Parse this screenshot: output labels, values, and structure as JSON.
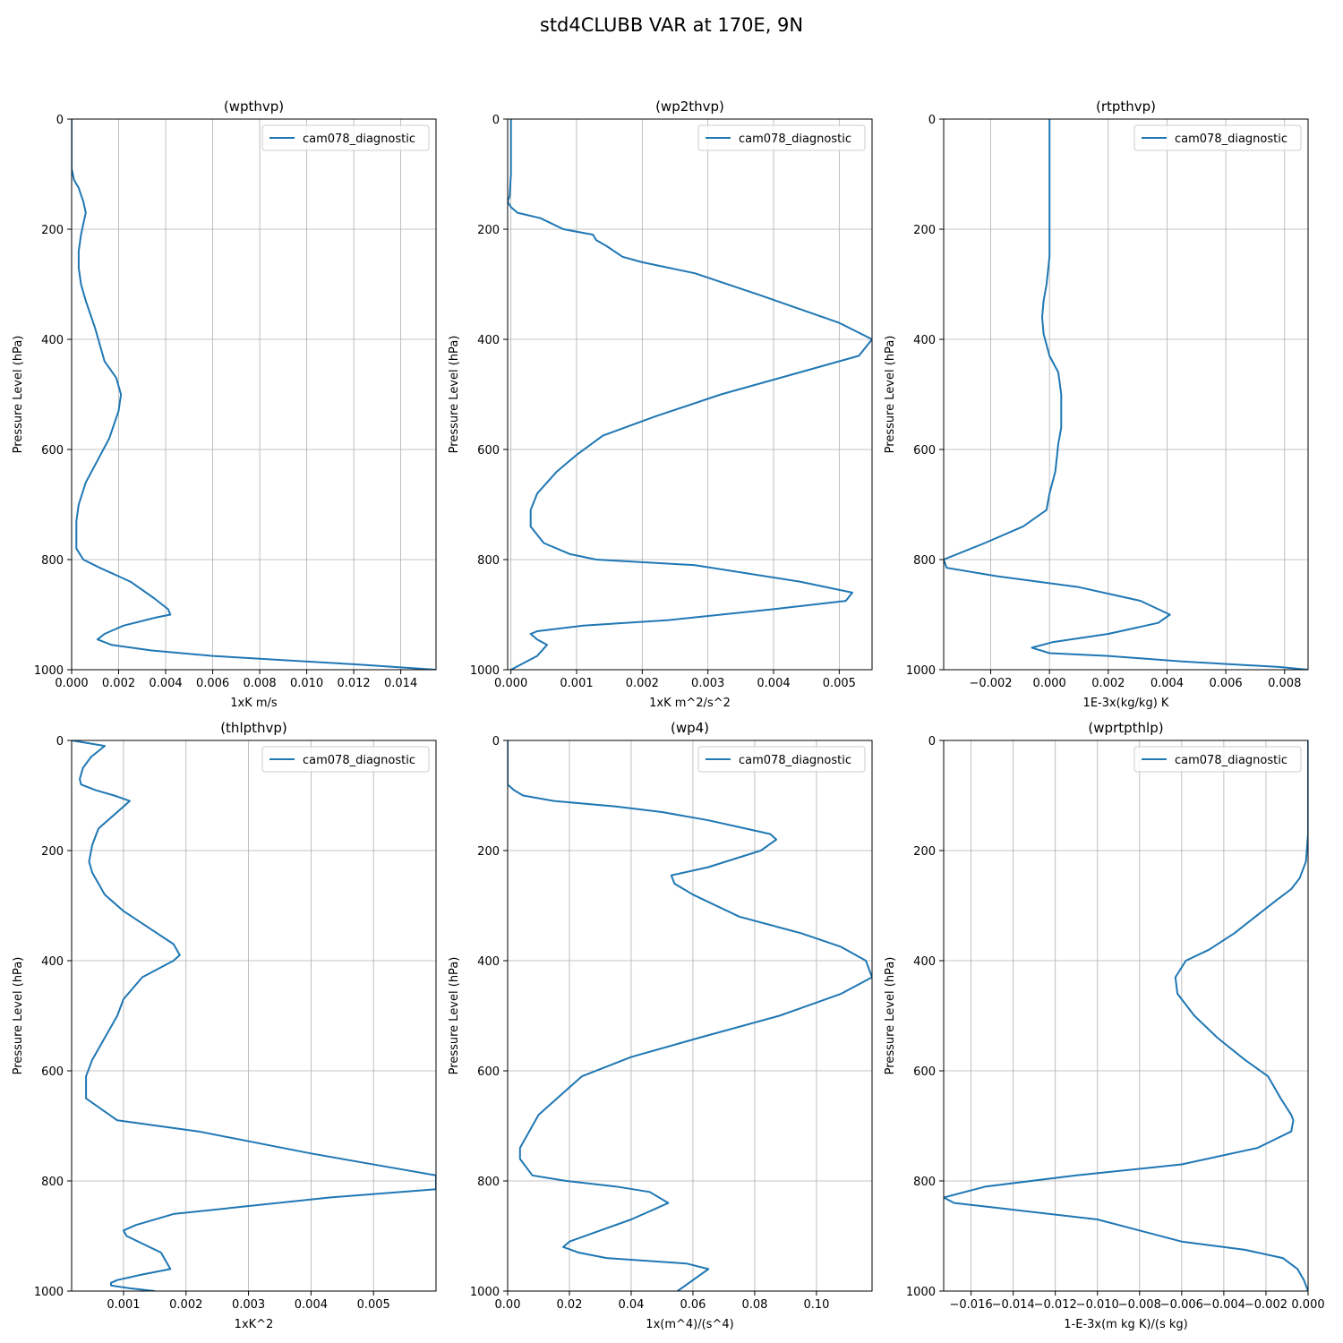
{
  "figure": {
    "title": "std4CLUBB VAR at 170E, 9N"
  },
  "chart_data": [
    {
      "type": "line",
      "title": "(wpthvp)",
      "xlabel": "1xK m/s",
      "ylabel": "Pressure Level (hPa)",
      "xlim": [
        0.0,
        0.0155
      ],
      "ylim": [
        1000,
        0
      ],
      "xticks": [
        0.0,
        0.002,
        0.004,
        0.006,
        0.008,
        0.01,
        0.012,
        0.014
      ],
      "xtick_labels": [
        "0.000",
        "0.002",
        "0.004",
        "0.006",
        "0.008",
        "0.010",
        "0.012",
        "0.014"
      ],
      "yticks": [
        0,
        200,
        400,
        600,
        800,
        1000
      ],
      "grid": true,
      "legend": "top-right",
      "series": [
        {
          "name": "cam078_diagnostic",
          "color": "#1f77b4",
          "x": [
            0.0,
            0.0,
            0.0,
            0.0001,
            0.0003,
            0.0005,
            0.0006,
            0.0005,
            0.0004,
            0.0003,
            0.0003,
            0.0004,
            0.0006,
            0.001,
            0.0014,
            0.0019,
            0.0021,
            0.002,
            0.0016,
            0.0011,
            0.0006,
            0.0003,
            0.0002,
            0.0002,
            0.0002,
            0.0005,
            0.0012,
            0.0025,
            0.0035,
            0.0041,
            0.0042,
            0.0036,
            0.0022,
            0.0014,
            0.0011,
            0.0017,
            0.0034,
            0.006,
            0.012,
            0.0155
          ],
          "y": [
            0,
            50,
            90,
            110,
            125,
            150,
            170,
            190,
            210,
            240,
            270,
            300,
            330,
            380,
            440,
            470,
            500,
            530,
            580,
            620,
            660,
            700,
            730,
            760,
            780,
            800,
            815,
            840,
            870,
            890,
            900,
            905,
            920,
            935,
            945,
            955,
            965,
            975,
            990,
            1000
          ]
        }
      ]
    },
    {
      "type": "line",
      "title": "(wp2thvp)",
      "xlabel": "1xK m^2/s^2",
      "ylabel": "Pressure Level (hPa)",
      "xlim": [
        -5e-05,
        0.0055
      ],
      "ylim": [
        1000,
        0
      ],
      "xticks": [
        0.0,
        0.001,
        0.002,
        0.003,
        0.004,
        0.005
      ],
      "xtick_labels": [
        "0.000",
        "0.001",
        "0.002",
        "0.003",
        "0.004",
        "0.005"
      ],
      "yticks": [
        0,
        200,
        400,
        600,
        800,
        1000
      ],
      "grid": true,
      "legend": "top-right",
      "series": [
        {
          "name": "cam078_diagnostic",
          "color": "#1f77b4",
          "x": [
            0.0,
            0.0,
            0.0,
            0.0,
            -2e-05,
            -5e-05,
            0.0,
            0.0001,
            0.00045,
            0.0008,
            0.00125,
            0.0013,
            0.00145,
            0.0017,
            0.002,
            0.0028,
            0.0038,
            0.005,
            0.0055,
            0.0053,
            0.0044,
            0.0032,
            0.0022,
            0.0014,
            0.001,
            0.0007,
            0.0004,
            0.0003,
            0.0003,
            0.0005,
            0.0009,
            0.0013,
            0.0028,
            0.0044,
            0.0052,
            0.0051,
            0.004,
            0.0024,
            0.0011,
            0.0004,
            0.0003,
            0.0004,
            0.00055,
            0.0004,
            0.0
          ],
          "y": [
            0,
            50,
            80,
            100,
            140,
            150,
            160,
            170,
            180,
            200,
            210,
            220,
            230,
            250,
            260,
            280,
            320,
            370,
            400,
            430,
            460,
            500,
            540,
            575,
            610,
            640,
            680,
            710,
            740,
            770,
            790,
            800,
            810,
            840,
            860,
            875,
            890,
            910,
            920,
            930,
            935,
            945,
            955,
            975,
            1000
          ]
        }
      ]
    },
    {
      "type": "line",
      "title": "(rtpthvp)",
      "xlabel": "1E-3x(kg/kg) K",
      "ylabel": "Pressure Level (hPa)",
      "xlim": [
        -0.0036,
        0.0088
      ],
      "ylim": [
        1000,
        0
      ],
      "xticks": [
        -0.002,
        0.0,
        0.002,
        0.004,
        0.006,
        0.008
      ],
      "xtick_labels": [
        "−0.002",
        "0.000",
        "0.002",
        "0.004",
        "0.006",
        "0.008"
      ],
      "yticks": [
        0,
        200,
        400,
        600,
        800,
        1000
      ],
      "grid": true,
      "legend": "top-right",
      "series": [
        {
          "name": "cam078_diagnostic",
          "color": "#1f77b4",
          "x": [
            0.0,
            0.0,
            0.0,
            0.0,
            0.0,
            -0.0001,
            -0.0002,
            -0.00025,
            -0.0002,
            0.0,
            0.0003,
            0.0004,
            0.0004,
            0.0003,
            0.0002,
            0.0,
            -0.0001,
            -0.0009,
            -0.0022,
            -0.0036,
            -0.0035,
            -0.0018,
            0.001,
            0.0031,
            0.0041,
            0.0037,
            0.002,
            0.0001,
            -0.0006,
            0.0,
            0.002,
            0.0045,
            0.0078,
            0.0088
          ],
          "y": [
            0,
            50,
            100,
            200,
            250,
            300,
            330,
            360,
            390,
            430,
            460,
            500,
            560,
            590,
            640,
            680,
            710,
            740,
            770,
            800,
            815,
            830,
            850,
            875,
            900,
            915,
            935,
            950,
            960,
            970,
            975,
            985,
            995,
            1000
          ]
        }
      ]
    },
    {
      "type": "line",
      "title": "(thlpthvp)",
      "xlabel": "1xK^2",
      "ylabel": "Pressure Level (hPa)",
      "xlim": [
        0.00017,
        0.006
      ],
      "ylim": [
        1000,
        0
      ],
      "xticks": [
        0.001,
        0.002,
        0.003,
        0.004,
        0.005
      ],
      "xtick_labels": [
        "0.001",
        "0.002",
        "0.003",
        "0.004",
        "0.005"
      ],
      "yticks": [
        0,
        200,
        400,
        600,
        800,
        1000
      ],
      "grid": true,
      "legend": "top-right",
      "series": [
        {
          "name": "cam078_diagnostic",
          "color": "#1f77b4",
          "x": [
            0.00017,
            0.0007,
            0.00048,
            0.00035,
            0.0003,
            0.00032,
            0.00055,
            0.00085,
            0.0011,
            0.0009,
            0.0006,
            0.0005,
            0.00045,
            0.0005,
            0.0006,
            0.0007,
            0.001,
            0.0014,
            0.0018,
            0.0019,
            0.0018,
            0.0013,
            0.001,
            0.0009,
            0.0007,
            0.0005,
            0.0004,
            0.0004,
            0.0009,
            0.0022,
            0.004,
            0.0055,
            0.006,
            0.006,
            0.0043,
            0.0018,
            0.0012,
            0.001,
            0.00105,
            0.0016,
            0.00175,
            0.0013,
            0.0009,
            0.0008,
            0.0008,
            0.0011,
            0.0015
          ],
          "y": [
            0,
            10,
            30,
            50,
            70,
            80,
            90,
            100,
            110,
            130,
            160,
            190,
            220,
            240,
            260,
            280,
            310,
            340,
            370,
            390,
            400,
            430,
            470,
            500,
            540,
            580,
            610,
            650,
            690,
            710,
            750,
            780,
            790,
            815,
            830,
            860,
            880,
            890,
            900,
            930,
            960,
            970,
            980,
            985,
            990,
            995,
            1000
          ]
        }
      ]
    },
    {
      "type": "line",
      "title": "(wp4)",
      "xlabel": "1x(m^4)/(s^4)",
      "ylabel": "Pressure Level (hPa)",
      "xlim": [
        0.0,
        0.118
      ],
      "ylim": [
        1000,
        0
      ],
      "xticks": [
        0.0,
        0.02,
        0.04,
        0.06,
        0.08,
        0.1
      ],
      "xtick_labels": [
        "0.00",
        "0.02",
        "0.04",
        "0.06",
        "0.08",
        "0.10"
      ],
      "yticks": [
        0,
        200,
        400,
        600,
        800,
        1000
      ],
      "grid": true,
      "legend": "top-right",
      "series": [
        {
          "name": "cam078_diagnostic",
          "color": "#1f77b4",
          "x": [
            0.0,
            0.0,
            0.002,
            0.005,
            0.015,
            0.035,
            0.05,
            0.065,
            0.077,
            0.085,
            0.087,
            0.082,
            0.065,
            0.053,
            0.054,
            0.06,
            0.075,
            0.095,
            0.108,
            0.116,
            0.118,
            0.108,
            0.088,
            0.062,
            0.04,
            0.024,
            0.016,
            0.01,
            0.007,
            0.004,
            0.004,
            0.008,
            0.019,
            0.035,
            0.046,
            0.052,
            0.048,
            0.04,
            0.03,
            0.02,
            0.018,
            0.023,
            0.032,
            0.058,
            0.065,
            0.055
          ],
          "y": [
            0,
            80,
            90,
            100,
            110,
            120,
            130,
            145,
            160,
            170,
            180,
            200,
            230,
            245,
            260,
            280,
            320,
            350,
            375,
            400,
            430,
            460,
            500,
            540,
            575,
            610,
            650,
            680,
            710,
            740,
            760,
            790,
            800,
            810,
            820,
            840,
            850,
            870,
            890,
            910,
            920,
            930,
            940,
            950,
            960,
            1000
          ]
        }
      ]
    },
    {
      "type": "line",
      "title": "(wprtpthlp)",
      "xlabel": "1-E-3x(m kg K)/(s kg)",
      "ylabel": "Pressure Level (hPa)",
      "xlim": [
        -0.0173,
        0.0
      ],
      "ylim": [
        1000,
        0
      ],
      "xticks": [
        -0.016,
        -0.014,
        -0.012,
        -0.01,
        -0.008,
        -0.006,
        -0.004,
        -0.002,
        0.0
      ],
      "xtick_labels": [
        "−0.016",
        "−0.014",
        "−0.012",
        "−0.010",
        "−0.008",
        "−0.006",
        "−0.004",
        "−0.002",
        "0.000"
      ],
      "yticks": [
        0,
        200,
        400,
        600,
        800,
        1000
      ],
      "grid": true,
      "legend": "top-right",
      "series": [
        {
          "name": "cam078_diagnostic",
          "color": "#1f77b4",
          "x": [
            0.0,
            0.0,
            0.0,
            -0.0001,
            -0.0004,
            -0.0008,
            -0.0015,
            -0.0025,
            -0.0035,
            -0.0047,
            -0.0058,
            -0.0063,
            -0.0062,
            -0.0054,
            -0.0043,
            -0.003,
            -0.0019,
            -0.0013,
            -0.0008,
            -0.0007,
            -0.0008,
            -0.0024,
            -0.006,
            -0.011,
            -0.0153,
            -0.0173,
            -0.0168,
            -0.0145,
            -0.01,
            -0.006,
            -0.003,
            -0.0012,
            -0.0005,
            -0.0002,
            0.0
          ],
          "y": [
            0,
            100,
            170,
            220,
            250,
            270,
            290,
            320,
            350,
            380,
            400,
            430,
            460,
            500,
            540,
            580,
            610,
            650,
            680,
            690,
            710,
            740,
            770,
            790,
            810,
            830,
            840,
            850,
            870,
            910,
            925,
            940,
            960,
            980,
            1000
          ]
        }
      ]
    }
  ]
}
